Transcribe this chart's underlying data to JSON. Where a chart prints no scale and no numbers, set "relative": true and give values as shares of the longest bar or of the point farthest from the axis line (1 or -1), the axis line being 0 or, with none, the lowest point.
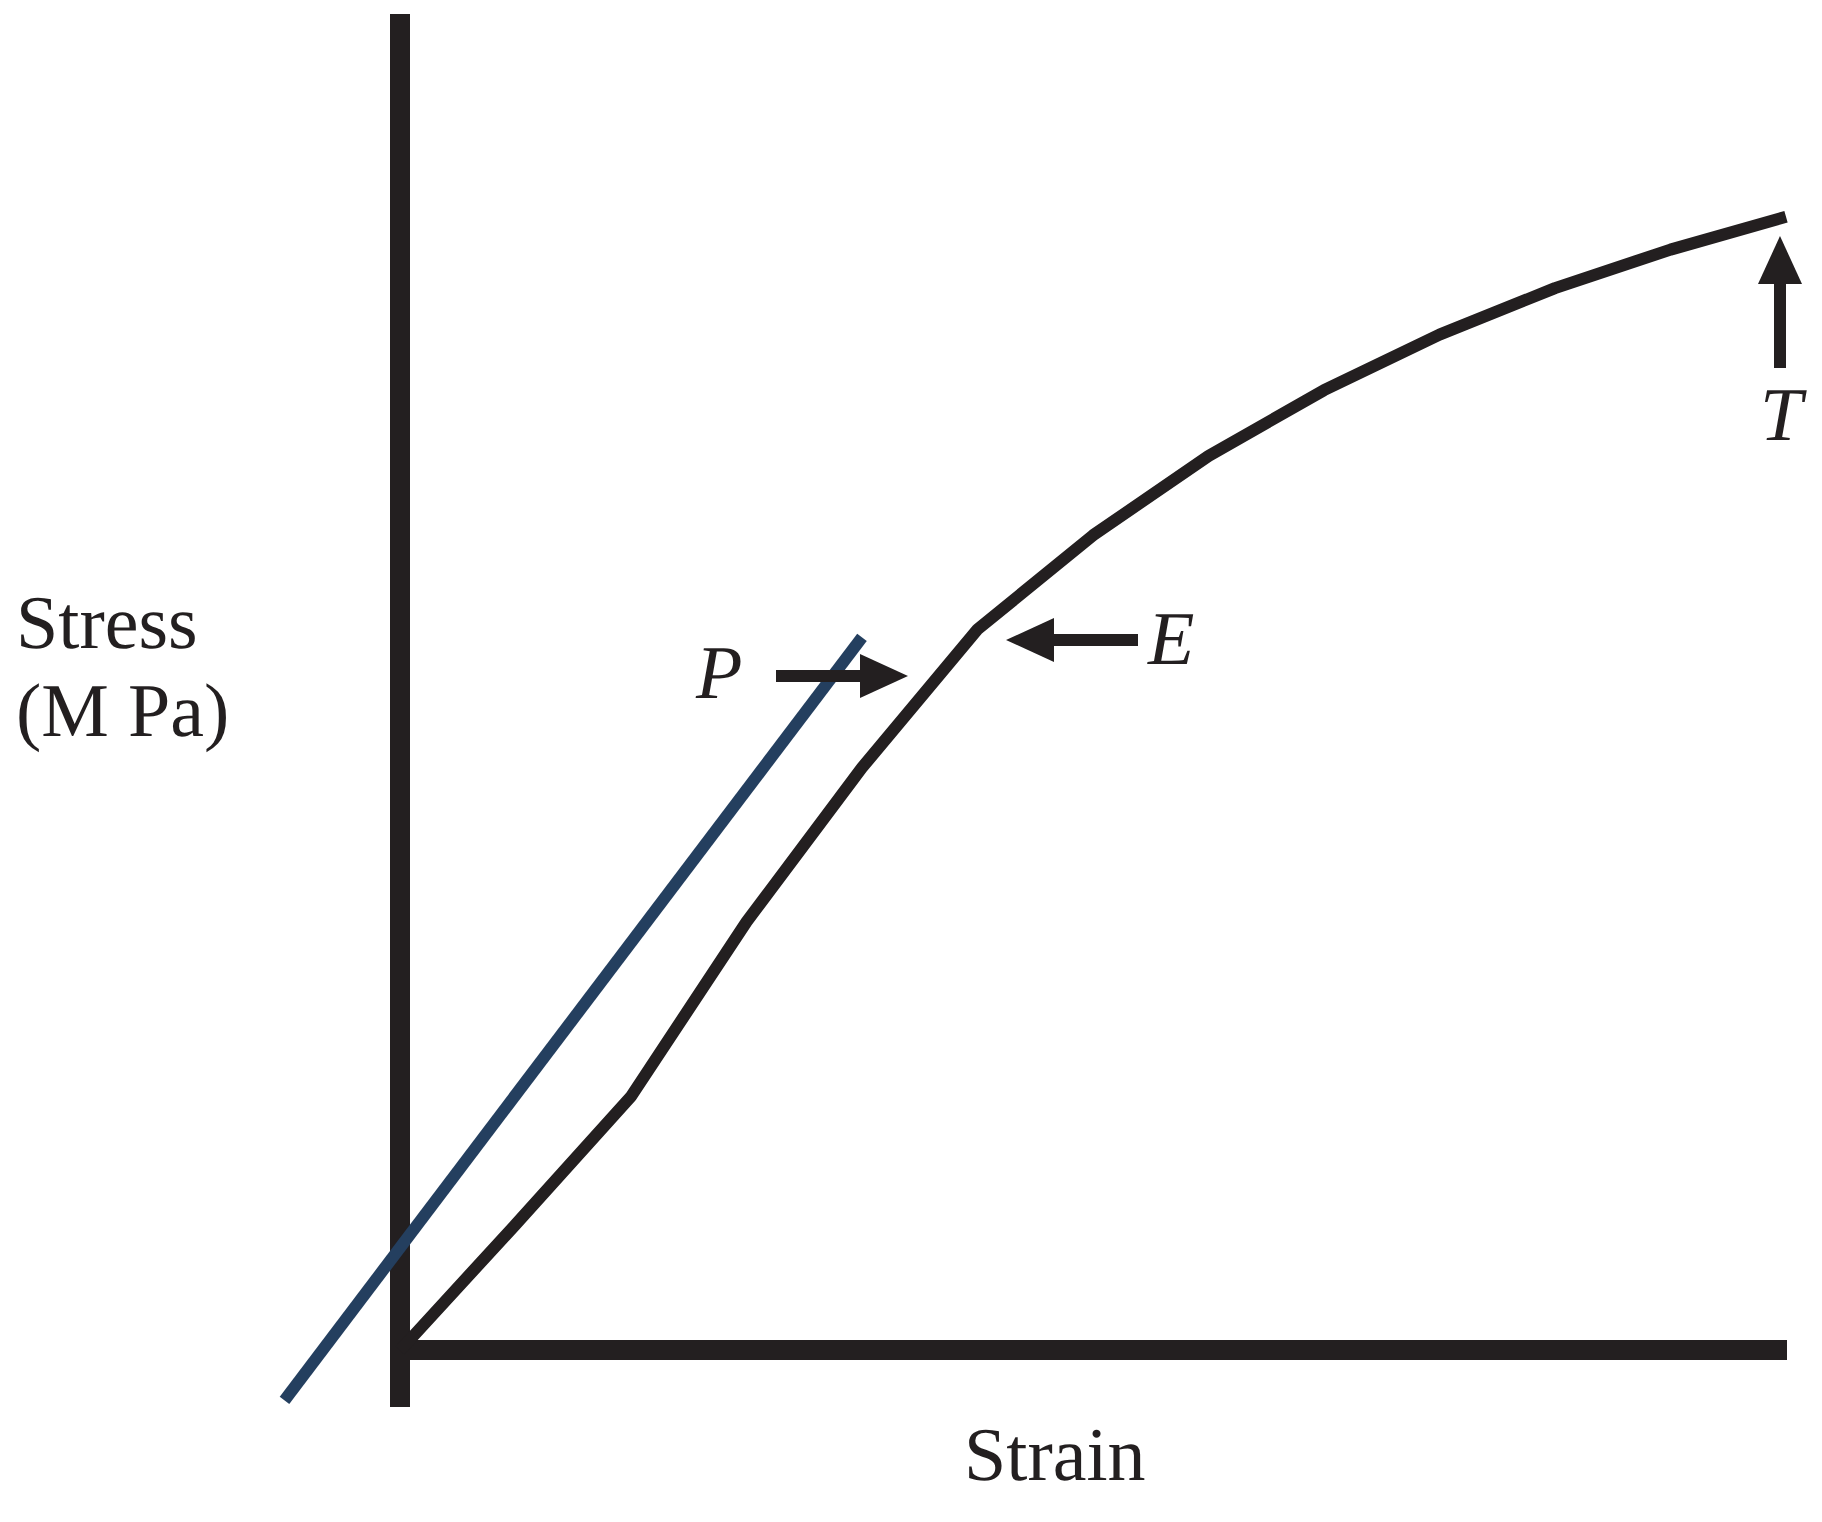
{
  "chart_data": {
    "type": "line",
    "relative": true,
    "xlabel": "Strain",
    "ylabel": "Stress\n(M Pa)",
    "marker": "none",
    "categories": [
      null,
      null,
      null,
      null,
      null,
      null,
      null,
      null,
      null,
      null,
      null,
      null,
      null,
      null
    ],
    "series": [
      {
        "color": "#231f20",
        "values": [
          null,
          0,
          0.111,
          0.224,
          0.378,
          0.514,
          0.636,
          0.719,
          0.789,
          0.847,
          0.896,
          0.937,
          0.971,
          1
        ]
      },
      {
        "color": "#243f5f",
        "values": [
          -0.044,
          null,
          null,
          null,
          null,
          0.629,
          null,
          null,
          null,
          null,
          null,
          null,
          null,
          null
        ]
      }
    ],
    "annotations": [
      "P",
      "E",
      "T"
    ]
  }
}
